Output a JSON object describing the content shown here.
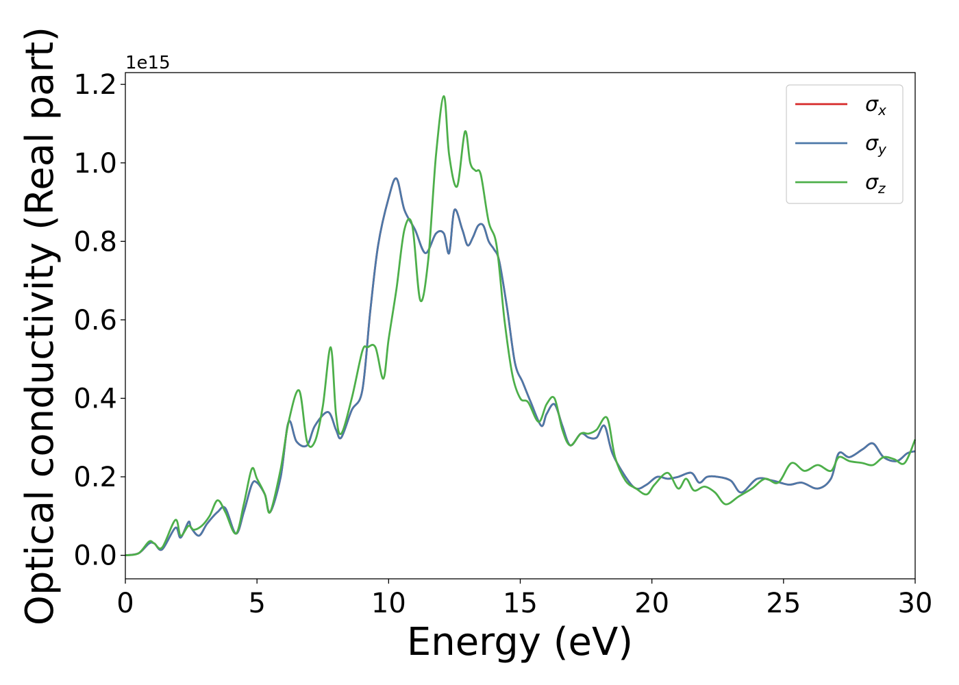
{
  "chart_data": {
    "type": "line",
    "xlabel": "Energy (eV)",
    "ylabel": "Optical conductivity (Real part)",
    "y_offset_label": "1e15",
    "xlim": [
      0,
      30
    ],
    "ylim": [
      -0.06,
      1.23
    ],
    "x_ticks": [
      0,
      5,
      10,
      15,
      20,
      25,
      30
    ],
    "x_tick_labels": [
      "0",
      "5",
      "10",
      "15",
      "20",
      "25",
      "30"
    ],
    "y_ticks": [
      0.0,
      0.2,
      0.4,
      0.6,
      0.8,
      1.0,
      1.2
    ],
    "y_tick_labels": [
      "0.0",
      "0.2",
      "0.4",
      "0.6",
      "0.8",
      "1.0",
      "1.2"
    ],
    "grid": false,
    "legend_position": "top-right",
    "series": [
      {
        "name": "σx",
        "symbol": "σ",
        "subscript": "x",
        "color": "#d62728",
        "x": [
          0,
          0.5,
          0.9,
          1.1,
          1.4,
          1.9,
          2.1,
          2.4,
          2.5,
          2.8,
          3.1,
          3.5,
          3.8,
          4.2,
          4.5,
          4.8,
          5.0,
          5.3,
          5.5,
          5.9,
          6.2,
          6.5,
          6.9,
          7.2,
          7.7,
          8.0,
          8.2,
          8.6,
          9.0,
          9.3,
          9.6,
          10.0,
          10.3,
          10.6,
          11.0,
          11.4,
          11.8,
          12.1,
          12.3,
          12.5,
          12.8,
          13.0,
          13.2,
          13.4,
          13.6,
          13.8,
          14.0,
          14.2,
          14.5,
          14.8,
          15.1,
          15.4,
          15.8,
          16.0,
          16.3,
          16.6,
          16.9,
          17.3,
          17.6,
          17.9,
          18.2,
          18.5,
          19.0,
          19.4,
          19.8,
          20.2,
          20.6,
          21.0,
          21.5,
          21.8,
          22.1,
          22.5,
          23.0,
          23.4,
          24.0,
          24.6,
          25.2,
          25.7,
          26.3,
          26.8,
          27.1,
          27.5,
          28.0,
          28.4,
          28.8,
          29.3,
          29.7,
          30.0
        ],
        "y": [
          0.0,
          0.005,
          0.03,
          0.03,
          0.015,
          0.07,
          0.045,
          0.085,
          0.07,
          0.05,
          0.08,
          0.11,
          0.12,
          0.055,
          0.11,
          0.18,
          0.185,
          0.155,
          0.11,
          0.2,
          0.34,
          0.29,
          0.28,
          0.33,
          0.365,
          0.32,
          0.3,
          0.37,
          0.42,
          0.62,
          0.79,
          0.91,
          0.96,
          0.88,
          0.83,
          0.77,
          0.82,
          0.82,
          0.77,
          0.88,
          0.83,
          0.79,
          0.81,
          0.84,
          0.84,
          0.8,
          0.78,
          0.75,
          0.63,
          0.49,
          0.44,
          0.39,
          0.33,
          0.36,
          0.385,
          0.33,
          0.28,
          0.31,
          0.3,
          0.3,
          0.33,
          0.26,
          0.2,
          0.17,
          0.18,
          0.2,
          0.195,
          0.2,
          0.21,
          0.185,
          0.2,
          0.2,
          0.19,
          0.16,
          0.195,
          0.19,
          0.18,
          0.185,
          0.17,
          0.195,
          0.26,
          0.25,
          0.27,
          0.285,
          0.25,
          0.24,
          0.26,
          0.265
        ]
      },
      {
        "name": "σy",
        "symbol": "σ",
        "subscript": "y",
        "color": "#4c78a8",
        "x": [
          0,
          0.5,
          0.9,
          1.1,
          1.4,
          1.9,
          2.1,
          2.4,
          2.5,
          2.8,
          3.1,
          3.5,
          3.8,
          4.2,
          4.5,
          4.8,
          5.0,
          5.3,
          5.5,
          5.9,
          6.2,
          6.5,
          6.9,
          7.2,
          7.7,
          8.0,
          8.2,
          8.6,
          9.0,
          9.3,
          9.6,
          10.0,
          10.3,
          10.6,
          11.0,
          11.4,
          11.8,
          12.1,
          12.3,
          12.5,
          12.8,
          13.0,
          13.2,
          13.4,
          13.6,
          13.8,
          14.0,
          14.2,
          14.5,
          14.8,
          15.1,
          15.4,
          15.8,
          16.0,
          16.3,
          16.6,
          16.9,
          17.3,
          17.6,
          17.9,
          18.2,
          18.5,
          19.0,
          19.4,
          19.8,
          20.2,
          20.6,
          21.0,
          21.5,
          21.8,
          22.1,
          22.5,
          23.0,
          23.4,
          24.0,
          24.6,
          25.2,
          25.7,
          26.3,
          26.8,
          27.1,
          27.5,
          28.0,
          28.4,
          28.8,
          29.3,
          29.7,
          30.0
        ],
        "y": [
          0.0,
          0.005,
          0.03,
          0.03,
          0.015,
          0.07,
          0.045,
          0.085,
          0.07,
          0.05,
          0.08,
          0.11,
          0.12,
          0.055,
          0.11,
          0.18,
          0.185,
          0.155,
          0.11,
          0.2,
          0.34,
          0.29,
          0.28,
          0.33,
          0.365,
          0.32,
          0.3,
          0.37,
          0.42,
          0.62,
          0.79,
          0.91,
          0.96,
          0.88,
          0.83,
          0.77,
          0.82,
          0.82,
          0.77,
          0.88,
          0.83,
          0.79,
          0.81,
          0.84,
          0.84,
          0.8,
          0.78,
          0.75,
          0.63,
          0.49,
          0.44,
          0.39,
          0.33,
          0.36,
          0.385,
          0.33,
          0.28,
          0.31,
          0.3,
          0.3,
          0.33,
          0.26,
          0.2,
          0.17,
          0.18,
          0.2,
          0.195,
          0.2,
          0.21,
          0.185,
          0.2,
          0.2,
          0.19,
          0.16,
          0.195,
          0.19,
          0.18,
          0.185,
          0.17,
          0.195,
          0.26,
          0.25,
          0.27,
          0.285,
          0.25,
          0.24,
          0.26,
          0.265
        ]
      },
      {
        "name": "σz",
        "symbol": "σ",
        "subscript": "z",
        "color": "#4daf4a",
        "x": [
          0,
          0.5,
          0.9,
          1.1,
          1.4,
          1.9,
          2.1,
          2.4,
          2.6,
          2.9,
          3.2,
          3.5,
          3.8,
          4.2,
          4.5,
          4.8,
          5.0,
          5.3,
          5.5,
          5.9,
          6.2,
          6.6,
          6.9,
          7.2,
          7.5,
          7.8,
          8.0,
          8.2,
          8.6,
          9.0,
          9.2,
          9.5,
          9.8,
          10.0,
          10.3,
          10.6,
          10.9,
          11.2,
          11.5,
          11.8,
          12.1,
          12.3,
          12.6,
          12.9,
          13.1,
          13.3,
          13.5,
          13.8,
          14.1,
          14.4,
          14.7,
          15.0,
          15.3,
          15.7,
          16.0,
          16.3,
          16.6,
          16.9,
          17.3,
          17.6,
          17.9,
          18.3,
          18.6,
          19.0,
          19.4,
          19.8,
          20.1,
          20.6,
          21.0,
          21.3,
          21.6,
          22.0,
          22.4,
          22.8,
          23.3,
          23.8,
          24.3,
          24.8,
          25.3,
          25.8,
          26.3,
          26.8,
          27.1,
          27.5,
          28.0,
          28.4,
          28.8,
          29.2,
          29.6,
          30.0
        ],
        "y": [
          0.0,
          0.005,
          0.035,
          0.03,
          0.02,
          0.09,
          0.05,
          0.075,
          0.065,
          0.075,
          0.1,
          0.14,
          0.11,
          0.055,
          0.13,
          0.22,
          0.195,
          0.155,
          0.11,
          0.22,
          0.34,
          0.42,
          0.29,
          0.29,
          0.38,
          0.53,
          0.36,
          0.31,
          0.4,
          0.52,
          0.53,
          0.53,
          0.45,
          0.55,
          0.68,
          0.83,
          0.84,
          0.65,
          0.75,
          1.02,
          1.17,
          1.02,
          0.94,
          1.08,
          1.0,
          0.98,
          0.97,
          0.85,
          0.79,
          0.6,
          0.46,
          0.4,
          0.39,
          0.34,
          0.385,
          0.4,
          0.32,
          0.28,
          0.31,
          0.31,
          0.32,
          0.35,
          0.25,
          0.19,
          0.17,
          0.155,
          0.18,
          0.21,
          0.17,
          0.195,
          0.165,
          0.175,
          0.16,
          0.13,
          0.15,
          0.17,
          0.195,
          0.185,
          0.235,
          0.215,
          0.23,
          0.215,
          0.25,
          0.24,
          0.235,
          0.23,
          0.25,
          0.245,
          0.235,
          0.295
        ]
      }
    ]
  }
}
